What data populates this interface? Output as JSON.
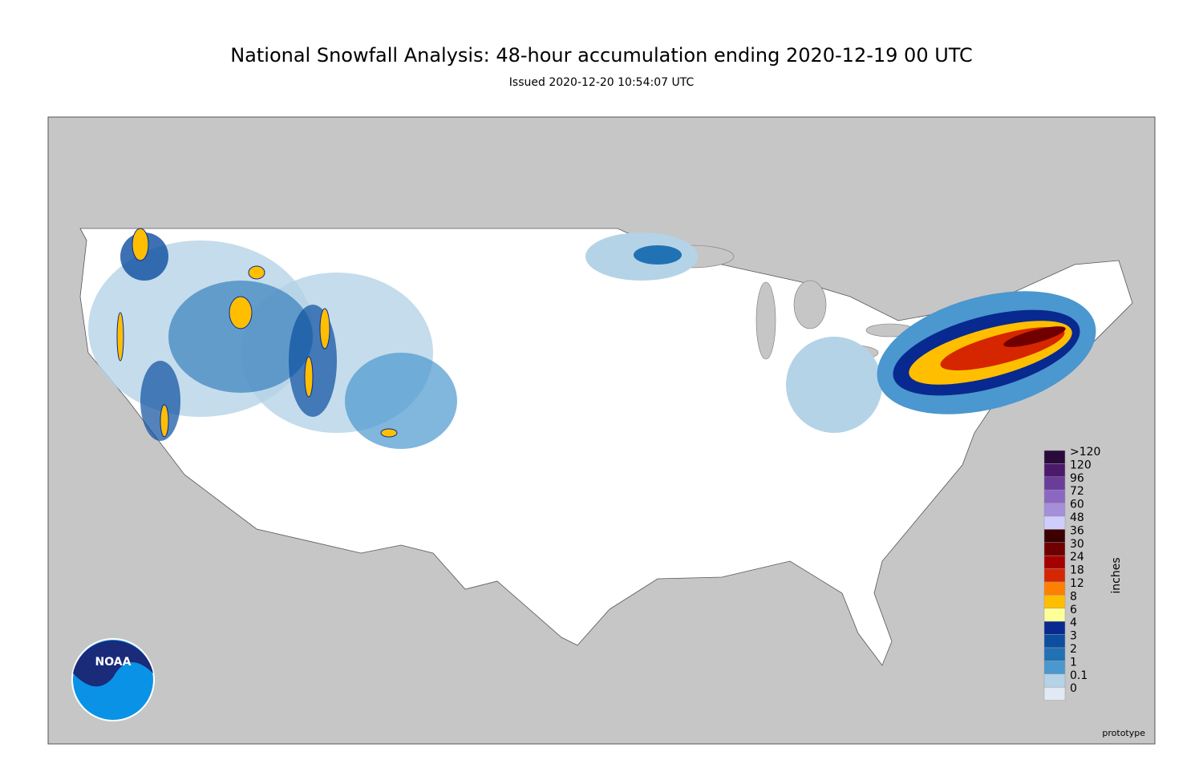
{
  "title": "National Snowfall Analysis: 48-hour accumulation ending 2020-12-19 00 UTC",
  "subtitle": "Issued 2020-12-20 10:54:07 UTC",
  "logo_text": "NOAA",
  "footer_note": "prototype",
  "legend": {
    "unit": "inches",
    "items": [
      {
        "label": ">120",
        "color": "#2a0a3a"
      },
      {
        "label": "120",
        "color": "#4b1a6a"
      },
      {
        "label": "96",
        "color": "#6b3d9b"
      },
      {
        "label": "72",
        "color": "#8b67c2"
      },
      {
        "label": "60",
        "color": "#a58fda"
      },
      {
        "label": "48",
        "color": "#cfcdfb"
      },
      {
        "label": "36",
        "color": "#3c0000"
      },
      {
        "label": "30",
        "color": "#700000"
      },
      {
        "label": "24",
        "color": "#a50000"
      },
      {
        "label": "18",
        "color": "#d62600"
      },
      {
        "label": "12",
        "color": "#ff8000"
      },
      {
        "label": "8",
        "color": "#ffbf00"
      },
      {
        "label": "6",
        "color": "#ffff99"
      },
      {
        "label": "4",
        "color": "#08298f"
      },
      {
        "label": "3",
        "color": "#0c4ea0"
      },
      {
        "label": "2",
        "color": "#2171b5"
      },
      {
        "label": "1",
        "color": "#4b97cf"
      },
      {
        "label": "0.1",
        "color": "#b5d3e7"
      },
      {
        "label": "0",
        "color": "#e1eaf4"
      }
    ]
  }
}
